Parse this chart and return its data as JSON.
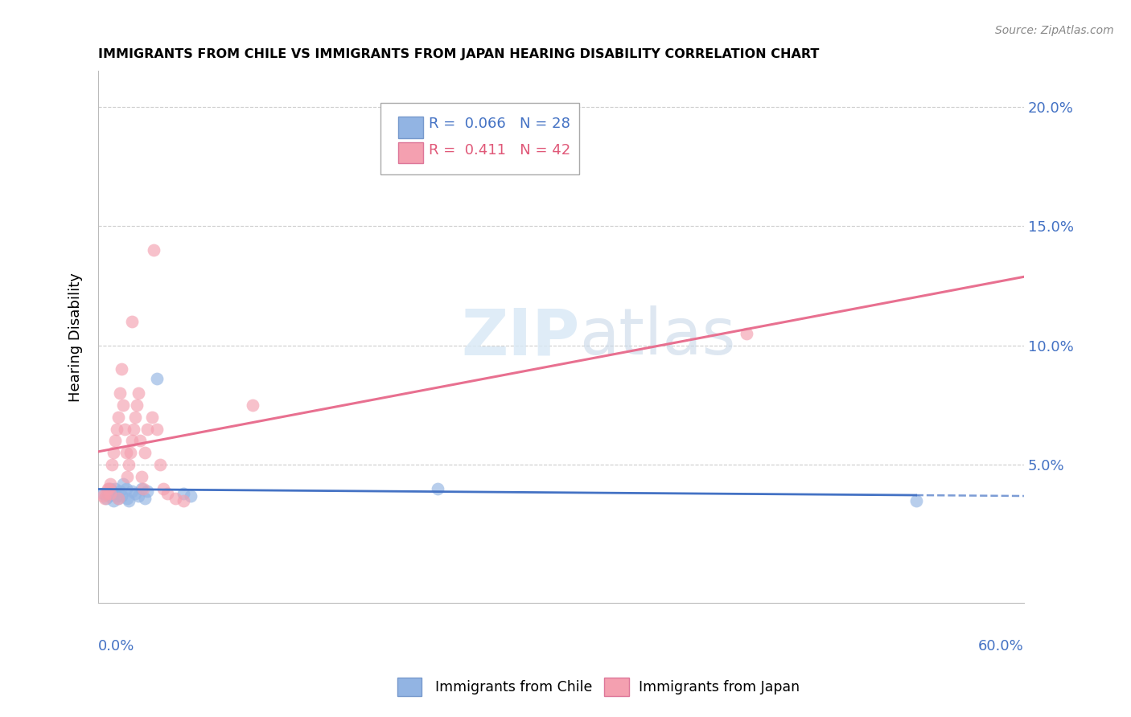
{
  "title": "IMMIGRANTS FROM CHILE VS IMMIGRANTS FROM JAPAN HEARING DISABILITY CORRELATION CHART",
  "source": "Source: ZipAtlas.com",
  "ylabel": "Hearing Disability",
  "xmin": 0.0,
  "xmax": 0.6,
  "ymin": -0.008,
  "ymax": 0.215,
  "legend1_r": "0.066",
  "legend1_n": "28",
  "legend2_r": "0.411",
  "legend2_n": "42",
  "color_chile": "#92b4e3",
  "color_japan": "#f4a0b0",
  "line_chile": "#4472c4",
  "line_japan": "#e87090",
  "chile_x": [
    0.003,
    0.005,
    0.006,
    0.007,
    0.008,
    0.009,
    0.01,
    0.01,
    0.011,
    0.012,
    0.013,
    0.014,
    0.015,
    0.016,
    0.018,
    0.019,
    0.02,
    0.022,
    0.024,
    0.026,
    0.028,
    0.03,
    0.032,
    0.038,
    0.055,
    0.06,
    0.22,
    0.53
  ],
  "chile_y": [
    0.038,
    0.036,
    0.038,
    0.037,
    0.04,
    0.039,
    0.035,
    0.038,
    0.04,
    0.037,
    0.036,
    0.039,
    0.037,
    0.042,
    0.04,
    0.036,
    0.035,
    0.039,
    0.038,
    0.037,
    0.04,
    0.036,
    0.039,
    0.086,
    0.038,
    0.037,
    0.04,
    0.035
  ],
  "japan_x": [
    0.003,
    0.004,
    0.005,
    0.006,
    0.007,
    0.008,
    0.009,
    0.01,
    0.011,
    0.012,
    0.013,
    0.014,
    0.015,
    0.016,
    0.017,
    0.018,
    0.019,
    0.02,
    0.021,
    0.022,
    0.023,
    0.024,
    0.025,
    0.026,
    0.027,
    0.028,
    0.029,
    0.03,
    0.032,
    0.035,
    0.036,
    0.038,
    0.04,
    0.042,
    0.045,
    0.05,
    0.055,
    0.1,
    0.42,
    0.022,
    0.008,
    0.013
  ],
  "japan_y": [
    0.037,
    0.036,
    0.038,
    0.04,
    0.04,
    0.042,
    0.05,
    0.055,
    0.06,
    0.065,
    0.07,
    0.08,
    0.09,
    0.075,
    0.065,
    0.055,
    0.045,
    0.05,
    0.055,
    0.06,
    0.065,
    0.07,
    0.075,
    0.08,
    0.06,
    0.045,
    0.04,
    0.055,
    0.065,
    0.07,
    0.14,
    0.065,
    0.05,
    0.04,
    0.038,
    0.036,
    0.035,
    0.075,
    0.105,
    0.11,
    0.038,
    0.036
  ]
}
